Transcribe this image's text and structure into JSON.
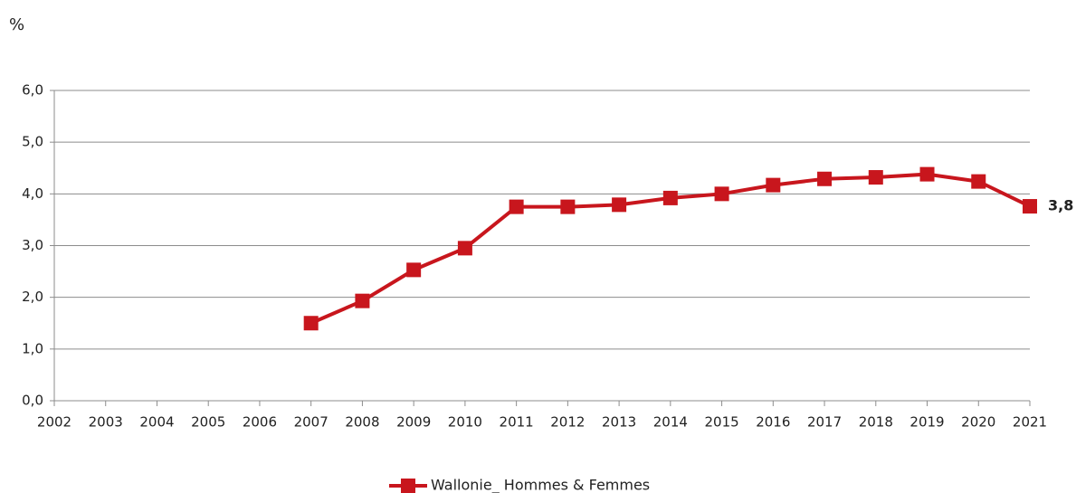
{
  "chart_data": {
    "type": "line",
    "y_label": "%",
    "categories": [
      "2002",
      "2003",
      "2004",
      "2005",
      "2006",
      "2007",
      "2008",
      "2009",
      "2010",
      "2011",
      "2012",
      "2013",
      "2014",
      "2015",
      "2016",
      "2017",
      "2018",
      "2019",
      "2020",
      "2021"
    ],
    "series": [
      {
        "name": "Wallonie_ Hommes & Femmes",
        "color": "#c8161d",
        "values": [
          null,
          null,
          null,
          null,
          null,
          1.5,
          1.93,
          2.53,
          2.95,
          3.75,
          3.75,
          3.79,
          3.92,
          4.0,
          4.17,
          4.29,
          4.32,
          4.38,
          4.24,
          3.76
        ],
        "value_labels": [
          null,
          null,
          null,
          null,
          null,
          null,
          null,
          null,
          null,
          null,
          null,
          null,
          null,
          null,
          null,
          null,
          null,
          null,
          null,
          "3,8"
        ]
      }
    ],
    "ylim": [
      0,
      6
    ],
    "yticks": [
      {
        "value": 0,
        "label": "0,0"
      },
      {
        "value": 1,
        "label": "1,0"
      },
      {
        "value": 2,
        "label": "2,0"
      },
      {
        "value": 3,
        "label": "3,0"
      },
      {
        "value": 4,
        "label": "4,0"
      },
      {
        "value": 5,
        "label": "5,0"
      },
      {
        "value": 6,
        "label": "6,0"
      }
    ],
    "grid": true,
    "legend": "bottom"
  }
}
